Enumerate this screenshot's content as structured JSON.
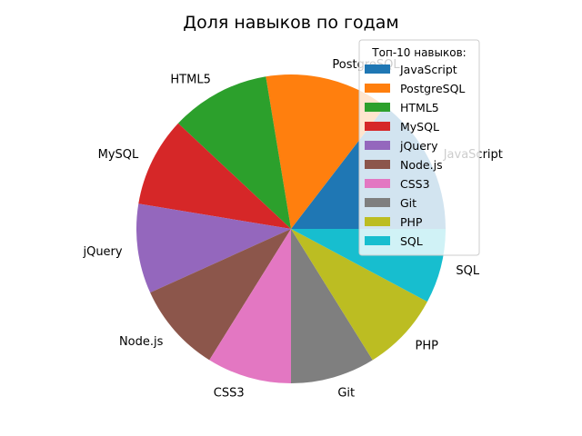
{
  "chart_data": {
    "type": "pie",
    "title": "Доля навыков по годам",
    "legend_title": "Топ-10 навыков:",
    "legend_location": "top-right",
    "start_angle_deg": 0,
    "direction": "counterclockwise",
    "slices": [
      {
        "label": "JavaScript",
        "value": 14.0,
        "color": "#1f77b4"
      },
      {
        "label": "PostgreSQL",
        "value": 12.5,
        "color": "#ff7f0e"
      },
      {
        "label": "HTML5",
        "value": 10.0,
        "color": "#2ca02c"
      },
      {
        "label": "MySQL",
        "value": 9.0,
        "color": "#d62728"
      },
      {
        "label": "jQuery",
        "value": 9.0,
        "color": "#9467bd"
      },
      {
        "label": "Node.js",
        "value": 9.0,
        "color": "#8c564b"
      },
      {
        "label": "CSS3",
        "value": 8.5,
        "color": "#e377c2"
      },
      {
        "label": "Git",
        "value": 8.5,
        "color": "#7f7f7f"
      },
      {
        "label": "PHP",
        "value": 8.0,
        "color": "#bcbd22"
      },
      {
        "label": "SQL",
        "value": 7.5,
        "color": "#17becf"
      }
    ]
  }
}
